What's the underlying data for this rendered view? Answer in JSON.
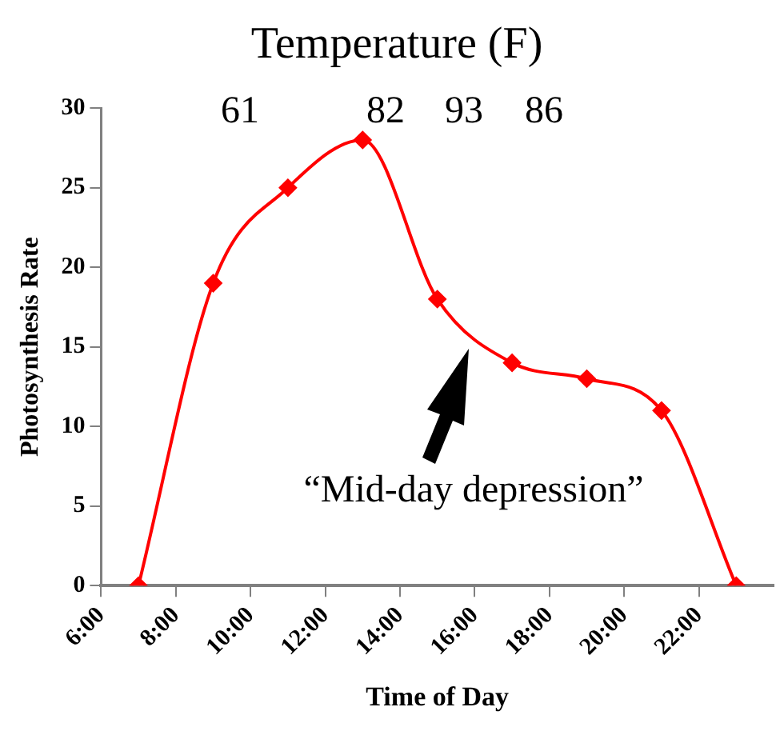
{
  "chart_data": {
    "type": "line",
    "title": "Temperature (F)",
    "xlabel": "Time of Day",
    "ylabel": "Photosynthesis Rate",
    "x": [
      7,
      9,
      11,
      13,
      15,
      17,
      19,
      21,
      23
    ],
    "series": [
      {
        "color": "#ff0000",
        "values": [
          0,
          19,
          25,
          28,
          18,
          14,
          13,
          11,
          0
        ]
      }
    ],
    "xlim": [
      6,
      24
    ],
    "xticks": [
      {
        "value": 6,
        "label": "6:00"
      },
      {
        "value": 8,
        "label": "8:00"
      },
      {
        "value": 10,
        "label": "10:00"
      },
      {
        "value": 12,
        "label": "12:00"
      },
      {
        "value": 14,
        "label": "14:00"
      },
      {
        "value": 16,
        "label": "16:00"
      },
      {
        "value": 18,
        "label": "18:00"
      },
      {
        "value": 20,
        "label": "20:00"
      },
      {
        "value": 22,
        "label": "22:00"
      }
    ],
    "ylim": [
      0,
      30
    ],
    "yticks": [
      0,
      5,
      10,
      15,
      20,
      25,
      30
    ],
    "grid": false,
    "legend": false,
    "marker": "diamond",
    "line_style": "solid",
    "annotations": [
      "61",
      "82",
      "93",
      "86",
      "“Mid-day depression”"
    ]
  }
}
